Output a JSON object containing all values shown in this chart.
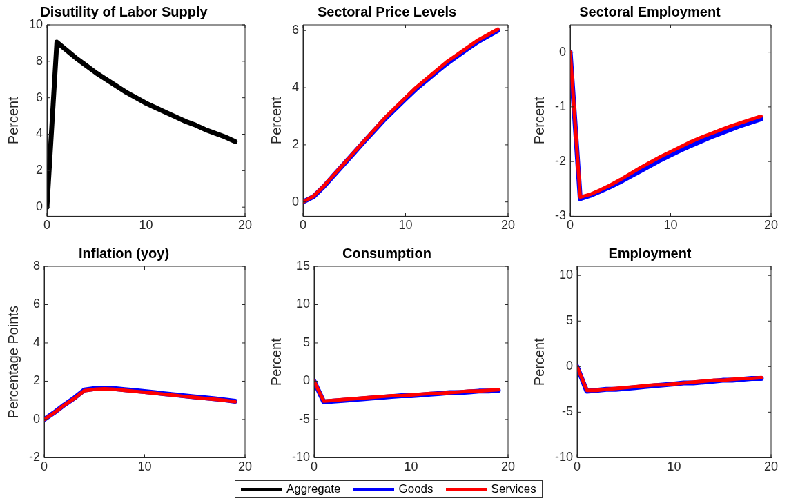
{
  "chart_data": [
    {
      "type": "line",
      "title": "Disutility of Labor Supply",
      "ylabel": "Percent",
      "x": [
        0,
        1,
        2,
        3,
        4,
        5,
        6,
        7,
        8,
        9,
        10,
        11,
        12,
        13,
        14,
        15,
        16,
        17,
        18,
        19
      ],
      "xlim": [
        0,
        20
      ],
      "xticks": [
        0,
        10,
        20
      ],
      "ylim": [
        -0.5,
        10
      ],
      "yticks": [
        0,
        2,
        4,
        6,
        8,
        10
      ],
      "grid": false,
      "legend": "bottom",
      "marker": "none",
      "line_style": "solid",
      "series": [
        {
          "name": "Aggregate",
          "color": "#000000",
          "values": [
            0,
            9.05,
            8.6,
            8.15,
            7.75,
            7.35,
            7.0,
            6.65,
            6.3,
            6.0,
            5.7,
            5.45,
            5.2,
            4.95,
            4.7,
            4.5,
            4.25,
            4.05,
            3.85,
            3.6
          ]
        }
      ]
    },
    {
      "type": "line",
      "title": "Sectoral Price Levels",
      "ylabel": "Percent",
      "x": [
        0,
        1,
        2,
        3,
        4,
        5,
        6,
        7,
        8,
        9,
        10,
        11,
        12,
        13,
        14,
        15,
        16,
        17,
        18,
        19
      ],
      "xlim": [
        0,
        20
      ],
      "xticks": [
        0,
        10,
        20
      ],
      "ylim": [
        -0.5,
        6.2
      ],
      "yticks": [
        0,
        2,
        4,
        6
      ],
      "grid": false,
      "legend": "bottom",
      "marker": "none",
      "line_style": "solid",
      "series": [
        {
          "name": "Goods",
          "color": "#0000ff",
          "values": [
            0,
            0.18,
            0.53,
            0.93,
            1.33,
            1.73,
            2.13,
            2.52,
            2.91,
            3.26,
            3.61,
            3.95,
            4.25,
            4.55,
            4.84,
            5.1,
            5.35,
            5.6,
            5.8,
            6.0
          ]
        },
        {
          "name": "Services",
          "color": "#ff0000",
          "values": [
            0,
            0.2,
            0.55,
            0.95,
            1.35,
            1.75,
            2.15,
            2.55,
            2.95,
            3.3,
            3.65,
            4.0,
            4.3,
            4.6,
            4.9,
            5.15,
            5.4,
            5.65,
            5.85,
            6.05
          ]
        }
      ]
    },
    {
      "type": "line",
      "title": "Sectoral Employment",
      "ylabel": "Percent",
      "x": [
        0,
        1,
        2,
        3,
        4,
        5,
        6,
        7,
        8,
        9,
        10,
        11,
        12,
        13,
        14,
        15,
        16,
        17,
        18,
        19
      ],
      "xlim": [
        0,
        20
      ],
      "xticks": [
        0,
        10,
        20
      ],
      "ylim": [
        -3,
        0.5
      ],
      "yticks": [
        -3,
        -2,
        -1,
        0
      ],
      "grid": false,
      "legend": "bottom",
      "marker": "none",
      "line_style": "solid",
      "series": [
        {
          "name": "Goods",
          "color": "#0000ff",
          "values": [
            0,
            -2.68,
            -2.62,
            -2.54,
            -2.46,
            -2.37,
            -2.27,
            -2.17,
            -2.07,
            -1.97,
            -1.88,
            -1.79,
            -1.71,
            -1.63,
            -1.55,
            -1.48,
            -1.41,
            -1.34,
            -1.28,
            -1.22
          ]
        },
        {
          "name": "Services",
          "color": "#ff0000",
          "values": [
            0,
            -2.65,
            -2.6,
            -2.52,
            -2.43,
            -2.33,
            -2.22,
            -2.11,
            -2.01,
            -1.91,
            -1.82,
            -1.73,
            -1.64,
            -1.56,
            -1.49,
            -1.42,
            -1.35,
            -1.29,
            -1.23,
            -1.17
          ]
        }
      ]
    },
    {
      "type": "line",
      "title": "Inflation (yoy)",
      "ylabel": "Percentage Points",
      "x": [
        0,
        1,
        2,
        3,
        4,
        5,
        6,
        7,
        8,
        9,
        10,
        11,
        12,
        13,
        14,
        15,
        16,
        17,
        18,
        19
      ],
      "xlim": [
        0,
        20
      ],
      "xticks": [
        0,
        10,
        20
      ],
      "ylim": [
        -2,
        8
      ],
      "yticks": [
        -2,
        0,
        2,
        4,
        6,
        8
      ],
      "grid": false,
      "legend": "bottom",
      "marker": "none",
      "line_style": "solid",
      "series": [
        {
          "name": "Goods",
          "color": "#0000ff",
          "values": [
            0,
            0.36,
            0.76,
            1.12,
            1.54,
            1.61,
            1.64,
            1.61,
            1.56,
            1.51,
            1.46,
            1.4,
            1.34,
            1.29,
            1.23,
            1.18,
            1.13,
            1.08,
            1.02,
            0.95
          ]
        },
        {
          "name": "Services",
          "color": "#ff0000",
          "values": [
            0,
            0.35,
            0.75,
            1.1,
            1.5,
            1.57,
            1.6,
            1.57,
            1.52,
            1.47,
            1.42,
            1.37,
            1.31,
            1.26,
            1.2,
            1.15,
            1.1,
            1.05,
            1.0,
            0.93
          ]
        }
      ]
    },
    {
      "type": "line",
      "title": "Consumption",
      "ylabel": "Percent",
      "x": [
        0,
        1,
        2,
        3,
        4,
        5,
        6,
        7,
        8,
        9,
        10,
        11,
        12,
        13,
        14,
        15,
        16,
        17,
        18,
        19
      ],
      "xlim": [
        0,
        20
      ],
      "xticks": [
        0,
        10,
        20
      ],
      "ylim": [
        -10,
        15
      ],
      "yticks": [
        -10,
        -5,
        0,
        5,
        10,
        15
      ],
      "grid": false,
      "legend": "bottom",
      "marker": "none",
      "line_style": "solid",
      "series": [
        {
          "name": "Goods",
          "color": "#0000ff",
          "values": [
            0,
            -2.7,
            -2.6,
            -2.5,
            -2.4,
            -2.3,
            -2.2,
            -2.1,
            -2.0,
            -1.9,
            -1.9,
            -1.8,
            -1.7,
            -1.6,
            -1.5,
            -1.5,
            -1.4,
            -1.3,
            -1.3,
            -1.2
          ]
        },
        {
          "name": "Services",
          "color": "#ff0000",
          "values": [
            0,
            -2.6,
            -2.5,
            -2.4,
            -2.3,
            -2.2,
            -2.1,
            -2.0,
            -1.9,
            -1.9,
            -1.8,
            -1.7,
            -1.6,
            -1.6,
            -1.5,
            -1.4,
            -1.3,
            -1.3,
            -1.2,
            -1.1
          ]
        }
      ]
    },
    {
      "type": "line",
      "title": "Employment",
      "ylabel": "Percent",
      "x": [
        0,
        1,
        2,
        3,
        4,
        5,
        6,
        7,
        8,
        9,
        10,
        11,
        12,
        13,
        14,
        15,
        16,
        17,
        18,
        19
      ],
      "xlim": [
        0,
        20
      ],
      "xticks": [
        0,
        10,
        20
      ],
      "ylim": [
        -10,
        11
      ],
      "yticks": [
        -10,
        -5,
        0,
        5,
        10
      ],
      "grid": false,
      "legend": "bottom",
      "marker": "none",
      "line_style": "solid",
      "series": [
        {
          "name": "Goods",
          "color": "#0000ff",
          "values": [
            0,
            -2.7,
            -2.6,
            -2.5,
            -2.5,
            -2.4,
            -2.3,
            -2.2,
            -2.1,
            -2.0,
            -1.9,
            -1.8,
            -1.8,
            -1.7,
            -1.6,
            -1.5,
            -1.5,
            -1.4,
            -1.3,
            -1.3
          ]
        },
        {
          "name": "Services",
          "color": "#ff0000",
          "values": [
            0,
            -2.6,
            -2.6,
            -2.5,
            -2.4,
            -2.3,
            -2.2,
            -2.1,
            -2.0,
            -2.0,
            -1.9,
            -1.8,
            -1.7,
            -1.6,
            -1.5,
            -1.5,
            -1.4,
            -1.3,
            -1.3,
            -1.2
          ]
        }
      ]
    }
  ]
}
